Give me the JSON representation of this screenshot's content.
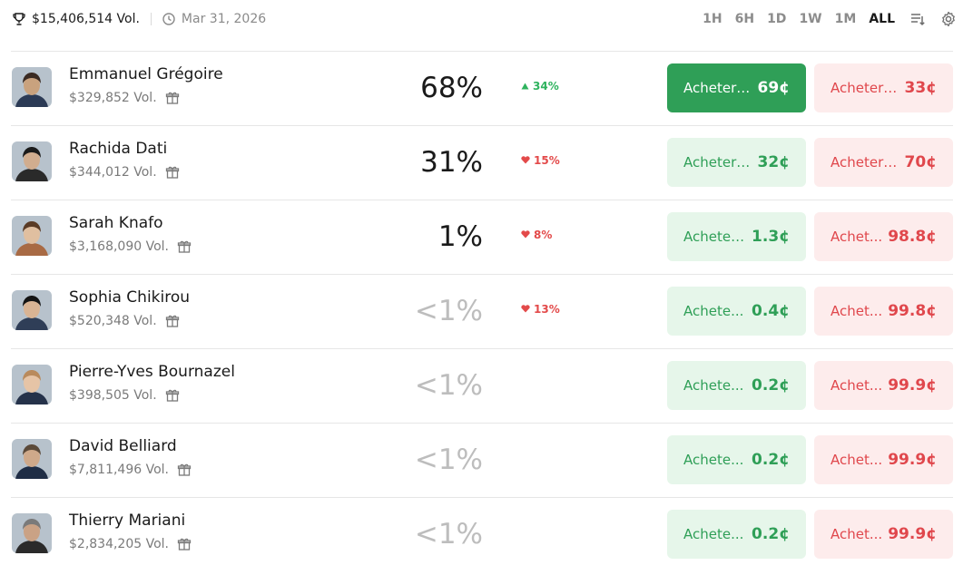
{
  "header": {
    "total_volume": "$15,406,514 Vol.",
    "date": "Mar 31, 2026",
    "timeframes": [
      "1H",
      "6H",
      "1D",
      "1W",
      "1M",
      "ALL"
    ],
    "active_timeframe": "ALL",
    "icons": [
      "trophy-icon",
      "clock-icon",
      "sort-icon",
      "gear-icon"
    ]
  },
  "colors": {
    "yes_bg": "#e6f6ea",
    "yes_text": "#2f9f57",
    "yes_solid": "#2f9f57",
    "no_bg": "#fdecec",
    "no_text": "#e0474c",
    "delta_up": "#2fb35e",
    "delta_down": "#e34a4a"
  },
  "candidates": [
    {
      "name": "Emmanuel Grégoire",
      "volume": "$329,852 Vol.",
      "chance": "68%",
      "delta": "34%",
      "delta_dir": "up",
      "yes_label": "Acheter ...",
      "yes_price": "69¢",
      "no_label": "Acheter ...",
      "no_price": "33¢",
      "yes_solid": true
    },
    {
      "name": "Rachida Dati",
      "volume": "$344,012 Vol.",
      "chance": "31%",
      "delta": "15%",
      "delta_dir": "down",
      "yes_label": "Acheter ...",
      "yes_price": "32¢",
      "no_label": "Acheter ...",
      "no_price": "70¢"
    },
    {
      "name": "Sarah Knafo",
      "volume": "$3,168,090 Vol.",
      "chance": "1%",
      "delta": "8%",
      "delta_dir": "down",
      "yes_label": "Acheter ...",
      "yes_price": "1.3¢",
      "no_label": "Achet...",
      "no_price": "98.8¢"
    },
    {
      "name": "Sophia Chikirou",
      "volume": "$520,348 Vol.",
      "chance": "<1%",
      "delta": "13%",
      "delta_dir": "down",
      "yes_label": "Achete...",
      "yes_price": "0.4¢",
      "no_label": "Achet...",
      "no_price": "99.8¢"
    },
    {
      "name": "Pierre-Yves Bournazel",
      "volume": "$398,505 Vol.",
      "chance": "<1%",
      "delta": "",
      "delta_dir": "",
      "yes_label": "Achete...",
      "yes_price": "0.2¢",
      "no_label": "Achet...",
      "no_price": "99.9¢"
    },
    {
      "name": "David Belliard",
      "volume": "$7,811,496 Vol.",
      "chance": "<1%",
      "delta": "",
      "delta_dir": "",
      "yes_label": "Achete...",
      "yes_price": "0.2¢",
      "no_label": "Achet...",
      "no_price": "99.9¢"
    },
    {
      "name": "Thierry Mariani",
      "volume": "$2,834,205 Vol.",
      "chance": "<1%",
      "delta": "",
      "delta_dir": "",
      "yes_label": "Achete...",
      "yes_price": "0.2¢",
      "no_label": "Achet...",
      "no_price": "99.9¢"
    }
  ]
}
